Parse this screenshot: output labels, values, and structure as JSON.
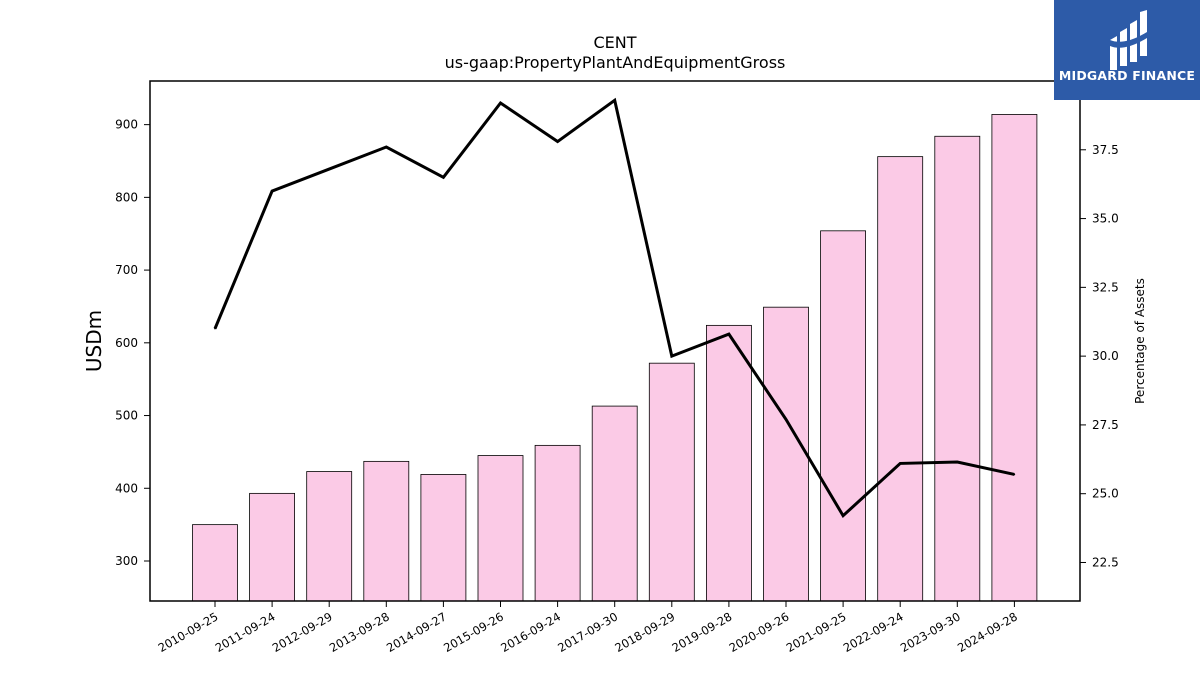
{
  "brand": {
    "name": "MIDGARD FINANCE",
    "bg_color": "#2d5ba8",
    "icon": "midgard-logo-icon"
  },
  "chart_data": {
    "type": "bar+line",
    "title": "CENT",
    "subtitle": "us-gaap:PropertyPlantAndEquipmentGross",
    "ylabel": "USDm",
    "ylabel_right": "Percentage of Assets",
    "categories": [
      "2010-09-25",
      "2011-09-24",
      "2012-09-29",
      "2013-09-28",
      "2014-09-27",
      "2015-09-26",
      "2016-09-24",
      "2017-09-30",
      "2018-09-29",
      "2019-09-28",
      "2020-09-26",
      "2021-09-25",
      "2022-09-24",
      "2023-09-30",
      "2024-09-28"
    ],
    "series": [
      {
        "type": "bar",
        "axis": "left",
        "color": "#fbcae6",
        "values": [
          350,
          393,
          423,
          437,
          419,
          445,
          459,
          513,
          572,
          624,
          649,
          754,
          856,
          884,
          914
        ]
      },
      {
        "type": "line",
        "axis": "right",
        "color": "#000000",
        "values": [
          31.0,
          36.0,
          36.8,
          37.6,
          36.5,
          39.2,
          37.8,
          39.3,
          30.0,
          30.8,
          27.7,
          24.2,
          26.1,
          26.15,
          25.7
        ]
      }
    ],
    "ylim_left": [
      245,
      960
    ],
    "yticks_left": [
      300,
      400,
      500,
      600,
      700,
      800,
      900
    ],
    "ylim_right": [
      21.1,
      40.0
    ],
    "yticks_right": [
      "22.5",
      "25.0",
      "27.5",
      "30.0",
      "32.5",
      "35.0",
      "37.5"
    ],
    "grid": false,
    "legend": "none"
  }
}
